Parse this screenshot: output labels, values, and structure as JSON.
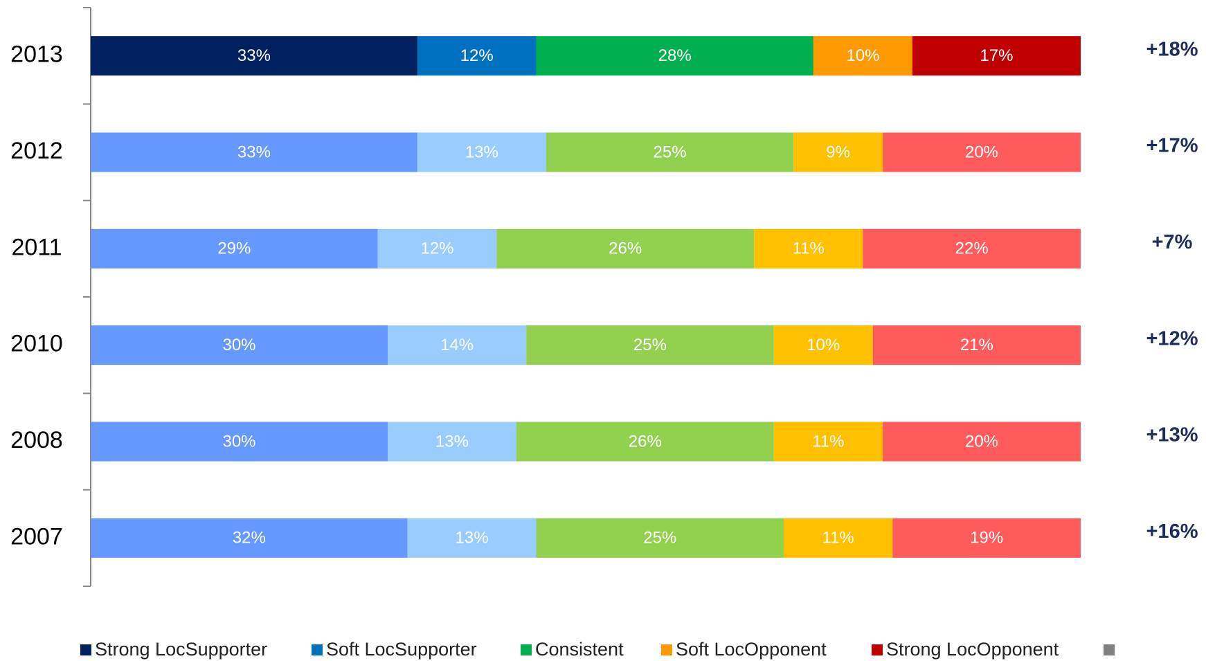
{
  "chart_data": {
    "type": "stacked_barh",
    "categories": [
      "2013",
      "2012",
      "2011",
      "2010",
      "2008",
      "2007"
    ],
    "xlim": [
      0,
      100
    ],
    "series": [
      {
        "name": "Strong LocSupporter",
        "colors": [
          "#002060",
          "#6699ff",
          "#6699ff",
          "#6699ff",
          "#6699ff",
          "#6699ff"
        ],
        "values": [
          33,
          33,
          29,
          30,
          30,
          32
        ],
        "value_labels": [
          "33%",
          "33%",
          "29%",
          "30%",
          "30%",
          "32%"
        ]
      },
      {
        "name": "Soft LocSupporter",
        "colors": [
          "#0070c0",
          "#99ccff",
          "#99ccff",
          "#99ccff",
          "#99ccff",
          "#99ccff"
        ],
        "values": [
          12,
          13,
          12,
          14,
          13,
          13
        ],
        "value_labels": [
          "12%",
          "13%",
          "12%",
          "14%",
          "13%",
          "13%"
        ]
      },
      {
        "name": "Consistent",
        "colors": [
          "#00b050",
          "#92d050",
          "#92d050",
          "#92d050",
          "#92d050",
          "#92d050"
        ],
        "values": [
          28,
          25,
          26,
          25,
          26,
          25
        ],
        "value_labels": [
          "28%",
          "25%",
          "26%",
          "25%",
          "26%",
          "25%"
        ]
      },
      {
        "name": "Soft LocOpponent",
        "colors": [
          "#ff9900",
          "#ffc000",
          "#ffc000",
          "#ffc000",
          "#ffc000",
          "#ffc000"
        ],
        "values": [
          10,
          9,
          11,
          10,
          11,
          11
        ],
        "value_labels": [
          "10%",
          "9%",
          "11%",
          "10%",
          "11%",
          "11%"
        ]
      },
      {
        "name": "Strong LocOpponent",
        "colors": [
          "#c00000",
          "#ff5b5b",
          "#ff5b5b",
          "#ff5b5b",
          "#ff5b5b",
          "#ff5b5b"
        ],
        "values": [
          17,
          20,
          22,
          21,
          20,
          19
        ],
        "value_labels": [
          "17%",
          "20%",
          "22%",
          "21%",
          "20%",
          "19%"
        ]
      }
    ],
    "annotations": [
      "+18%",
      "+17%",
      "+7%",
      "+12%",
      "+13%",
      "+16%"
    ]
  }
}
